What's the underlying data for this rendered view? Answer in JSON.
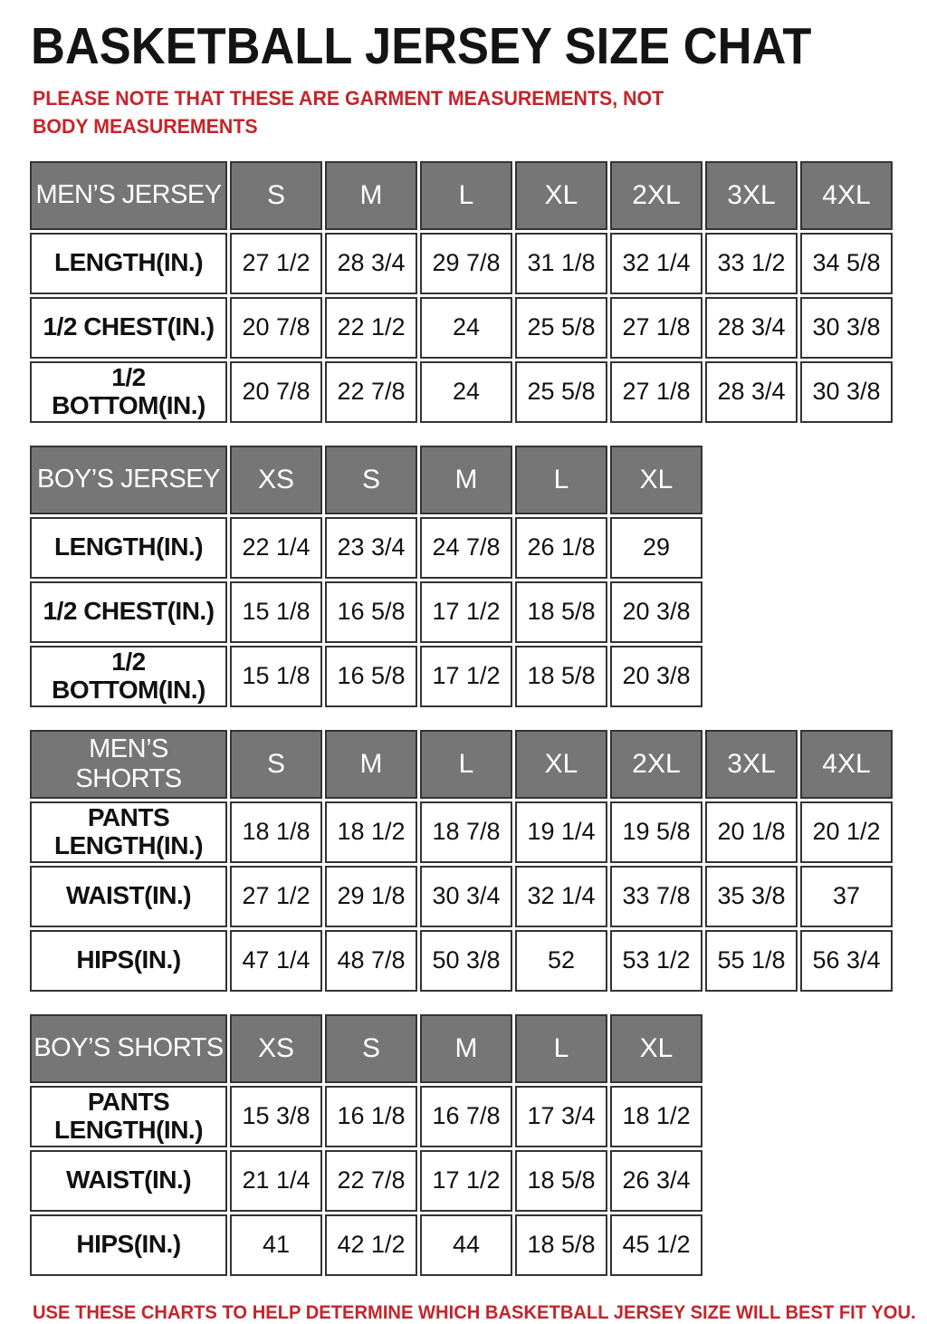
{
  "page": {
    "title": "BASKETBALL JERSEY SIZE CHAT",
    "note_top": "PLEASE NOTE THAT THESE ARE GARMENT MEASUREMENTS, NOT BODY MEASUREMENTS",
    "note_bottom": "USE THESE CHARTS TO HELP DETERMINE WHICH BASKETBALL JERSEY SIZE WILL BEST FIT YOU.",
    "colors": {
      "accent_red": "#c5242b",
      "header_grey": "#767676",
      "border_dark": "#343434"
    }
  },
  "tables": [
    {
      "name": "MEN’S JERSEY",
      "sizes": [
        "S",
        "M",
        "L",
        "XL",
        "2XL",
        "3XL",
        "4XL"
      ],
      "rows": [
        {
          "label": "LENGTH(IN.)",
          "values": [
            "27 1/2",
            "28 3/4",
            "29 7/8",
            "31 1/8",
            "32 1/4",
            "33 1/2",
            "34 5/8"
          ]
        },
        {
          "label": "1/2 CHEST(IN.)",
          "values": [
            "20 7/8",
            "22 1/2",
            "24",
            "25 5/8",
            "27 1/8",
            "28 3/4",
            "30 3/8"
          ]
        },
        {
          "label": "1/2 BOTTOM(IN.)",
          "values": [
            "20 7/8",
            "22 7/8",
            "24",
            "25 5/8",
            "27 1/8",
            "28 3/4",
            "30 3/8"
          ]
        }
      ]
    },
    {
      "name": "BOY’S JERSEY",
      "sizes": [
        "XS",
        "S",
        "M",
        "L",
        "XL"
      ],
      "rows": [
        {
          "label": "LENGTH(IN.)",
          "values": [
            "22 1/4",
            "23 3/4",
            "24 7/8",
            "26 1/8",
            "29"
          ]
        },
        {
          "label": "1/2 CHEST(IN.)",
          "values": [
            "15 1/8",
            "16 5/8",
            "17 1/2",
            "18 5/8",
            "20 3/8"
          ]
        },
        {
          "label": "1/2 BOTTOM(IN.)",
          "values": [
            "15 1/8",
            "16 5/8",
            "17 1/2",
            "18 5/8",
            "20 3/8"
          ]
        }
      ]
    },
    {
      "name": "MEN’S SHORTS",
      "sizes": [
        "S",
        "M",
        "L",
        "XL",
        "2XL",
        "3XL",
        "4XL"
      ],
      "rows": [
        {
          "label": "PANTS LENGTH(IN.)",
          "values": [
            "18 1/8",
            "18 1/2",
            "18 7/8",
            "19 1/4",
            "19 5/8",
            "20 1/8",
            "20 1/2"
          ]
        },
        {
          "label": "WAIST(IN.)",
          "values": [
            "27 1/2",
            "29 1/8",
            "30 3/4",
            "32 1/4",
            "33 7/8",
            "35 3/8",
            "37"
          ]
        },
        {
          "label": "HIPS(IN.)",
          "values": [
            "47 1/4",
            "48 7/8",
            "50 3/8",
            "52",
            "53 1/2",
            "55 1/8",
            "56 3/4"
          ]
        }
      ]
    },
    {
      "name": "BOY’S SHORTS",
      "sizes": [
        "XS",
        "S",
        "M",
        "L",
        "XL"
      ],
      "rows": [
        {
          "label": "PANTS LENGTH(IN.)",
          "values": [
            "15 3/8",
            "16 1/8",
            "16 7/8",
            "17 3/4",
            "18 1/2"
          ]
        },
        {
          "label": "WAIST(IN.)",
          "values": [
            "21 1/4",
            "22 7/8",
            "17 1/2",
            "18 5/8",
            "26 3/4"
          ]
        },
        {
          "label": "HIPS(IN.)",
          "values": [
            "41",
            "42 1/2",
            "44",
            "18 5/8",
            "45 1/2"
          ]
        }
      ]
    }
  ]
}
